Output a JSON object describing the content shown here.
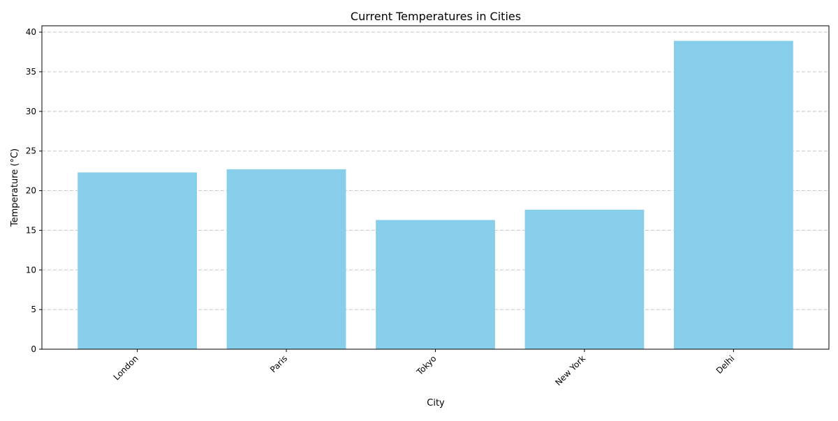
{
  "chart_data": {
    "type": "bar",
    "title": "Current Temperatures in Cities",
    "xlabel": "City",
    "ylabel": "Temperature (°C)",
    "categories": [
      "London",
      "Paris",
      "Tokyo",
      "New York",
      "Delhi"
    ],
    "values": [
      22.3,
      22.7,
      16.3,
      17.6,
      38.9
    ],
    "ylim": [
      0,
      40.8
    ],
    "yticks": [
      0,
      5,
      10,
      15,
      20,
      25,
      30,
      35,
      40
    ],
    "grid": {
      "y": true,
      "x": false,
      "style": "dashed"
    },
    "x_tick_rotation": 45,
    "legend": "none",
    "colors": {
      "bar": "#87ceeb",
      "grid": "#c8c8c8",
      "axis": "#000000"
    }
  }
}
